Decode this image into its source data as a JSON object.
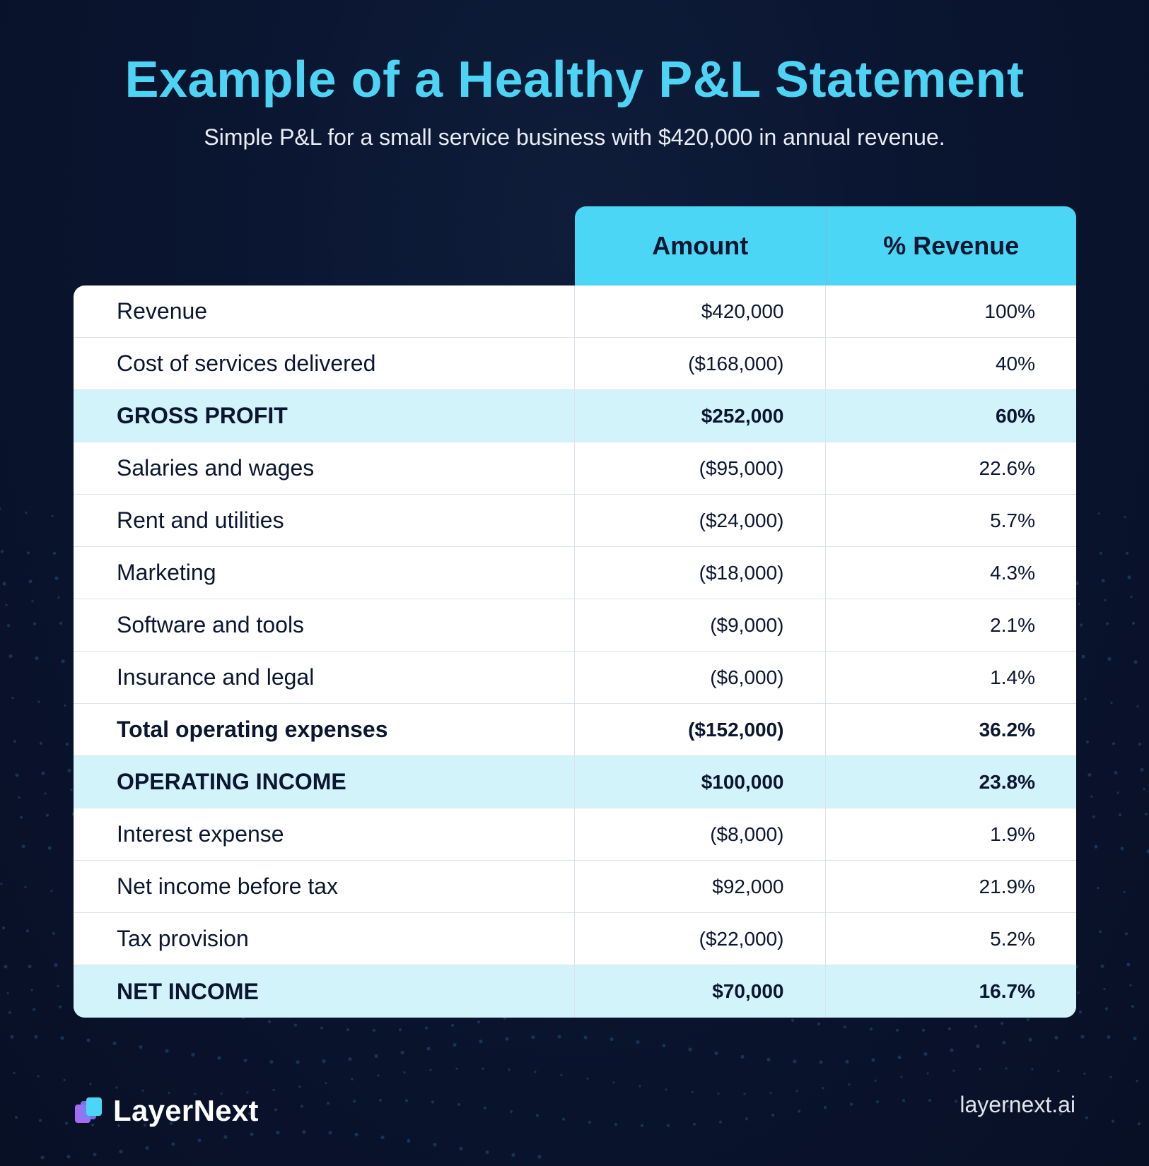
{
  "header": {
    "title": "Example of a Healthy P&L Statement",
    "subtitle": "Simple P&L for a small service business with $420,000 in annual revenue."
  },
  "table": {
    "columns": [
      "Amount",
      "% Revenue"
    ],
    "rows": [
      {
        "label": "Revenue",
        "amount": "$420,000",
        "pct": "100%"
      },
      {
        "label": "Cost of services delivered",
        "amount": "($168,000)",
        "pct": "40%"
      },
      {
        "label": "GROSS PROFIT",
        "amount": "$252,000",
        "pct": "60%"
      },
      {
        "label": "Salaries and wages",
        "amount": "($95,000)",
        "pct": "22.6%"
      },
      {
        "label": "Rent and utilities",
        "amount": "($24,000)",
        "pct": "5.7%"
      },
      {
        "label": "Marketing",
        "amount": "($18,000)",
        "pct": "4.3%"
      },
      {
        "label": "Software and tools",
        "amount": "($9,000)",
        "pct": "2.1%"
      },
      {
        "label": "Insurance and legal",
        "amount": "($6,000)",
        "pct": "1.4%"
      },
      {
        "label": "Total operating expenses",
        "amount": "($152,000)",
        "pct": "36.2%"
      },
      {
        "label": "OPERATING INCOME",
        "amount": "$100,000",
        "pct": "23.8%"
      },
      {
        "label": "Interest expense",
        "amount": "($8,000)",
        "pct": "1.9%"
      },
      {
        "label": "Net income before tax",
        "amount": "$92,000",
        "pct": "21.9%"
      },
      {
        "label": "Tax provision",
        "amount": "($22,000)",
        "pct": "5.2%"
      },
      {
        "label": "NET INCOME",
        "amount": "$70,000",
        "pct": "16.7%"
      }
    ]
  },
  "footer": {
    "brand": "LayerNext",
    "url": "layernext.ai"
  },
  "colors": {
    "accent": "#4cd6f5",
    "highlight_row": "#d3f3fb",
    "background": "#0a1530"
  },
  "icons": {
    "logo": "layernext-logo-icon"
  }
}
